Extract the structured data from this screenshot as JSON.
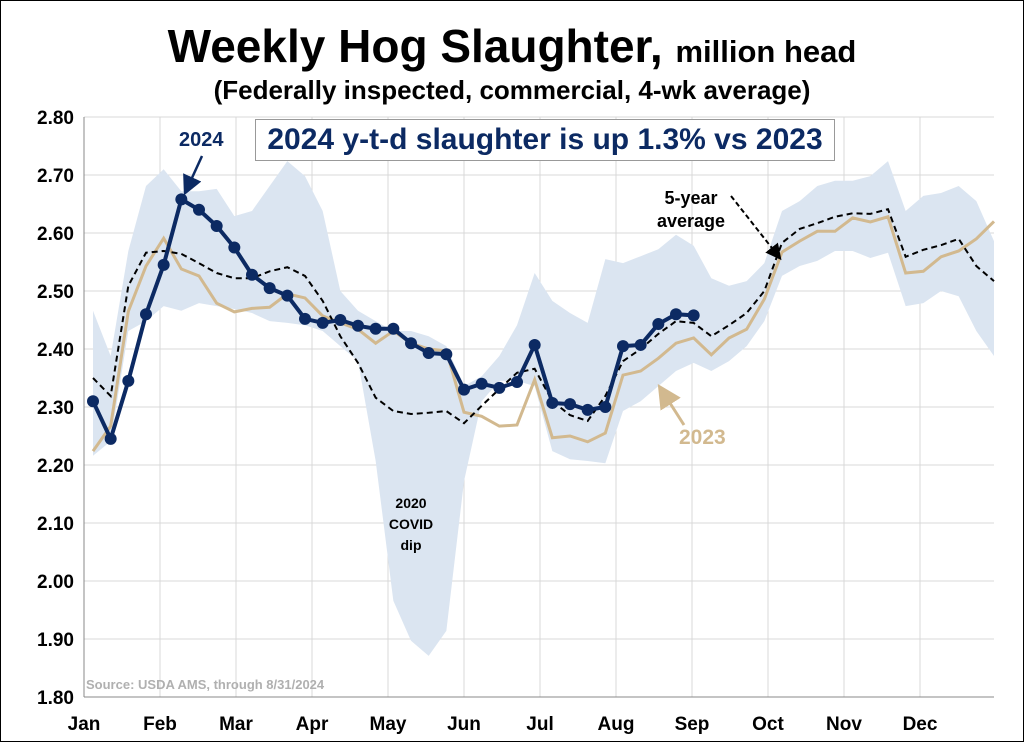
{
  "title": "Weekly Hog Slaughter,",
  "title_units": "million head",
  "subtitle": "(Federally inspected, commercial, 4-wk average)",
  "callout": "2024 y-t-d slaughter is up 1.3% vs 2023",
  "annotations": {
    "y2024": "2024",
    "y2023": "2023",
    "avg": "5-year average",
    "covid": "2020 COVID dip"
  },
  "source": "Source: USDA AMS, through 8/31/2024",
  "colors": {
    "y2024": "#0c2a63",
    "y2023": "#d2b98f",
    "avg": "#000000",
    "band": "#dbe5f1"
  },
  "chart_data": {
    "type": "line",
    "x_unit": "week of year",
    "ylim": [
      1.8,
      2.8
    ],
    "yticks": [
      "1.80",
      "1.90",
      "2.00",
      "2.10",
      "2.20",
      "2.30",
      "2.40",
      "2.50",
      "2.60",
      "2.70",
      "2.80"
    ],
    "xticks": [
      "Jan",
      "Feb",
      "Mar",
      "Apr",
      "May",
      "Jun",
      "Jul",
      "Aug",
      "Sep",
      "Oct",
      "Nov",
      "Dec"
    ],
    "grid": true,
    "series": [
      {
        "name": "2024",
        "style": "line-markers",
        "values": [
          2.31,
          2.245,
          2.345,
          2.46,
          2.545,
          2.658,
          2.64,
          2.612,
          2.575,
          2.528,
          2.505,
          2.492,
          2.452,
          2.445,
          2.45,
          2.44,
          2.435,
          2.435,
          2.41,
          2.393,
          2.391,
          2.33,
          2.34,
          2.333,
          2.343,
          2.407,
          2.307,
          2.305,
          2.295,
          2.3,
          2.405,
          2.407,
          2.443,
          2.46,
          2.458
        ]
      },
      {
        "name": "2023",
        "style": "line",
        "values": [
          2.224,
          2.267,
          2.465,
          2.543,
          2.591,
          2.538,
          2.526,
          2.479,
          2.464,
          2.47,
          2.472,
          2.495,
          2.488,
          2.457,
          2.445,
          2.434,
          2.41,
          2.431,
          2.41,
          2.4,
          2.397,
          2.291,
          2.284,
          2.267,
          2.269,
          2.347,
          2.247,
          2.25,
          2.24,
          2.255,
          2.355,
          2.362,
          2.384,
          2.41,
          2.419,
          2.39,
          2.419,
          2.434,
          2.486,
          2.567,
          2.586,
          2.603,
          2.603,
          2.626,
          2.619,
          2.628,
          2.531,
          2.534,
          2.559,
          2.569,
          2.59,
          2.62
        ]
      },
      {
        "name": "5-year average",
        "style": "dashed",
        "values": [
          2.35,
          2.319,
          2.509,
          2.566,
          2.569,
          2.564,
          2.548,
          2.531,
          2.522,
          2.522,
          2.534,
          2.541,
          2.526,
          2.483,
          2.422,
          2.376,
          2.316,
          2.293,
          2.288,
          2.29,
          2.293,
          2.272,
          2.302,
          2.331,
          2.359,
          2.366,
          2.31,
          2.286,
          2.276,
          2.319,
          2.379,
          2.4,
          2.426,
          2.448,
          2.445,
          2.422,
          2.441,
          2.462,
          2.5,
          2.583,
          2.607,
          2.617,
          2.628,
          2.634,
          2.633,
          2.641,
          2.559,
          2.571,
          2.579,
          2.59,
          2.543,
          2.517
        ]
      },
      {
        "style": "band-upper",
        "values": [
          2.466,
          2.388,
          2.569,
          2.681,
          2.71,
          2.672,
          2.672,
          2.676,
          2.629,
          2.638,
          2.681,
          2.724,
          2.698,
          2.638,
          2.5,
          2.466,
          2.448,
          2.431,
          2.431,
          2.422,
          2.405,
          2.336,
          2.353,
          2.388,
          2.441,
          2.531,
          2.483,
          2.462,
          2.445,
          2.555,
          2.548,
          2.56,
          2.572,
          2.597,
          2.578,
          2.522,
          2.509,
          2.517,
          2.548,
          2.638,
          2.655,
          2.681,
          2.69,
          2.69,
          2.698,
          2.724,
          2.638,
          2.664,
          2.669,
          2.681,
          2.655,
          2.586
        ]
      },
      {
        "style": "band-lower",
        "values": [
          2.216,
          2.241,
          2.431,
          2.448,
          2.474,
          2.466,
          2.479,
          2.474,
          2.469,
          2.462,
          2.448,
          2.445,
          2.441,
          2.431,
          2.405,
          2.379,
          2.207,
          1.966,
          1.897,
          1.871,
          1.914,
          2.172,
          2.31,
          2.345,
          2.345,
          2.336,
          2.224,
          2.21,
          2.207,
          2.203,
          2.293,
          2.31,
          2.336,
          2.362,
          2.376,
          2.362,
          2.379,
          2.405,
          2.448,
          2.526,
          2.543,
          2.552,
          2.569,
          2.569,
          2.557,
          2.566,
          2.474,
          2.479,
          2.5,
          2.491,
          2.431,
          2.388
        ]
      }
    ]
  }
}
